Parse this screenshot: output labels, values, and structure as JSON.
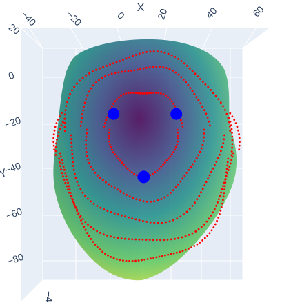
{
  "chart_data": {
    "type": "surface3d",
    "xaxis": {
      "title": "X",
      "ticks": [
        "−40",
        "−20",
        "0",
        "20",
        "40",
        "60"
      ]
    },
    "yaxis": {
      "title": "Y",
      "ticks": [
        "20",
        "0",
        "−20",
        "−40",
        "−60",
        "−80"
      ]
    },
    "zaxis": {
      "title": "",
      "ticks": [
        "−4"
      ]
    },
    "colorscale": [
      "#440154",
      "#3b528b",
      "#21918c",
      "#5ec962",
      "#fde725"
    ],
    "colors": {
      "scene_background": "#e5ecf6",
      "grid": "#ffffff",
      "contour_points": "#ff0000",
      "markers": "#0000ff"
    },
    "markers": [
      {
        "x": -2,
        "y": -14
      },
      {
        "x": 23,
        "y": -14
      },
      {
        "x": 10,
        "y": -38
      }
    ],
    "contour_levels": 5
  }
}
